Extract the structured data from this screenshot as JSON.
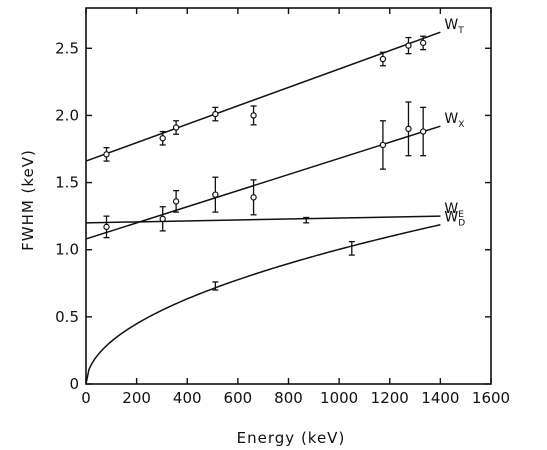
{
  "chart_data": {
    "type": "line",
    "xlabel": "Energy (keV)",
    "ylabel": "FWHM (keV)",
    "xlim": [
      0,
      1600
    ],
    "ylim": [
      0,
      2.8
    ],
    "xticks": [
      0,
      200,
      400,
      600,
      800,
      1000,
      1200,
      1400,
      1600
    ],
    "xtick_labels": [
      "0",
      "200",
      "400",
      "600",
      "800",
      "1000",
      "1200",
      "1400",
      "1600"
    ],
    "yticks": [
      0,
      0.5,
      1.0,
      1.5,
      2.0,
      2.5
    ],
    "ytick_labels": [
      "0",
      "0.5",
      "1.0",
      "1.5",
      "2.0",
      "2.5"
    ],
    "grid": false,
    "series": [
      {
        "name": "W",
        "sub": "T",
        "curve": {
          "kind": "linear",
          "x0": 0,
          "y0": 1.66,
          "x1": 1400,
          "y1": 2.62
        },
        "points": [
          {
            "x": 81,
            "y": 1.71,
            "err": 0.05
          },
          {
            "x": 303,
            "y": 1.83,
            "err": 0.05
          },
          {
            "x": 356,
            "y": 1.91,
            "err": 0.05
          },
          {
            "x": 511,
            "y": 2.01,
            "err": 0.05
          },
          {
            "x": 662,
            "y": 2.0,
            "err": 0.07
          },
          {
            "x": 1173,
            "y": 2.42,
            "err": 0.05
          },
          {
            "x": 1274,
            "y": 2.52,
            "err": 0.06
          },
          {
            "x": 1332,
            "y": 2.54,
            "err": 0.05
          }
        ]
      },
      {
        "name": "W",
        "sub": "X",
        "curve": {
          "kind": "linear",
          "x0": 0,
          "y0": 1.08,
          "x1": 1400,
          "y1": 1.92
        },
        "points": [
          {
            "x": 81,
            "y": 1.17,
            "err": 0.08
          },
          {
            "x": 303,
            "y": 1.23,
            "err": 0.09
          },
          {
            "x": 356,
            "y": 1.36,
            "err": 0.08
          },
          {
            "x": 511,
            "y": 1.41,
            "err": 0.13
          },
          {
            "x": 662,
            "y": 1.39,
            "err": 0.13
          },
          {
            "x": 1173,
            "y": 1.78,
            "err": 0.18
          },
          {
            "x": 1274,
            "y": 1.9,
            "err": 0.2
          },
          {
            "x": 1332,
            "y": 1.88,
            "err": 0.18
          }
        ]
      },
      {
        "name": "W",
        "sub": "E",
        "curve": {
          "kind": "linear",
          "x0": 0,
          "y0": 1.2,
          "x1": 1400,
          "y1": 1.25
        },
        "points": [
          {
            "x": 870,
            "y": 1.22,
            "err": 0.02,
            "marker": false
          }
        ]
      },
      {
        "name": "W",
        "sub": "D",
        "curve": {
          "kind": "sqrt",
          "coef": 0.0317
        },
        "points": [
          {
            "x": 511,
            "y": 0.73,
            "err": 0.03,
            "marker": false
          },
          {
            "x": 1050,
            "y": 1.01,
            "err": 0.05,
            "marker": false
          }
        ]
      }
    ]
  }
}
